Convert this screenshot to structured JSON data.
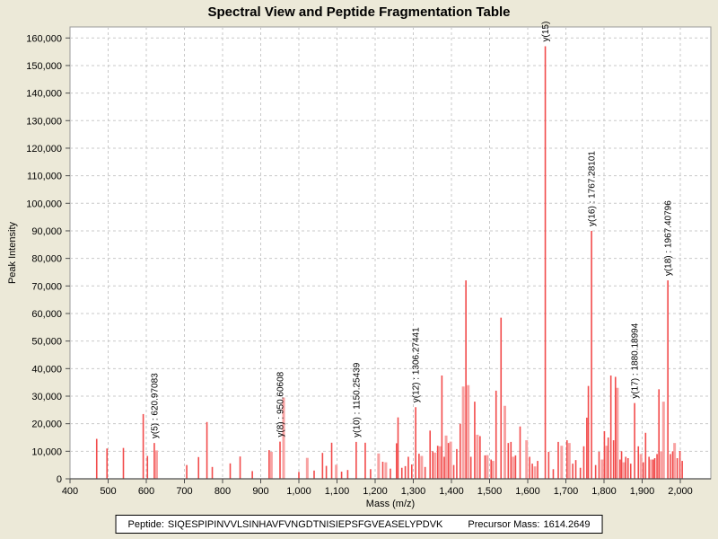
{
  "page": {
    "title": "Spectral View and Peptide Fragmentation Table",
    "footer": {
      "peptide_label": "Peptide:",
      "peptide_sequence": "SIQESPIPINVVLSINHAVFVNGDTNISIEPSFGVEASELYPDVK",
      "precursor_label": "Precursor Mass:",
      "precursor_mass": "1614.2649"
    },
    "colors": {
      "background": "#ece9d8",
      "plot_background": "#ffffff",
      "grid": "#c9c9c9",
      "plot_border": "#9a9a9a",
      "axis": "#4d4d4d",
      "peak_red": "#f24b4b",
      "peak_light": "#f8a2a2",
      "text": "#000000"
    }
  },
  "chart_data": {
    "type": "bar",
    "subtype": "mass-spectrum-stick-plot",
    "title": "Spectral View and Peptide Fragmentation Table",
    "xlabel": "Mass (m/z)",
    "ylabel": "Peak Intensity",
    "xlim": [
      400,
      2080
    ],
    "ylim": [
      0,
      164000
    ],
    "x_ticks": [
      400,
      500,
      600,
      700,
      800,
      900,
      1000,
      1100,
      1200,
      1300,
      1400,
      1500,
      1600,
      1700,
      1800,
      1900,
      2000
    ],
    "y_ticks": [
      0,
      10000,
      20000,
      30000,
      40000,
      50000,
      60000,
      70000,
      80000,
      90000,
      100000,
      110000,
      120000,
      130000,
      140000,
      150000,
      160000
    ],
    "grid": "dashed",
    "legend": "none",
    "peaks": [
      [
        470,
        14500,
        0
      ],
      [
        497,
        11000,
        0
      ],
      [
        540,
        11200,
        0
      ],
      [
        592,
        23500,
        0
      ],
      [
        603,
        8300,
        0
      ],
      [
        620.97083,
        13000,
        0
      ],
      [
        627,
        10300,
        1
      ],
      [
        706,
        5000,
        0
      ],
      [
        737,
        7900,
        0
      ],
      [
        759,
        20600,
        0
      ],
      [
        773,
        4300,
        0
      ],
      [
        820,
        5600,
        0
      ],
      [
        846,
        8100,
        0
      ],
      [
        878,
        2800,
        0
      ],
      [
        922,
        10400,
        0
      ],
      [
        928,
        9800,
        1
      ],
      [
        950.60608,
        13500,
        0
      ],
      [
        960,
        29500,
        1
      ],
      [
        1000,
        2500,
        0
      ],
      [
        1022,
        7600,
        1
      ],
      [
        1040,
        3000,
        0
      ],
      [
        1062,
        9400,
        0
      ],
      [
        1072,
        4700,
        0
      ],
      [
        1086,
        13100,
        0
      ],
      [
        1098,
        5100,
        1
      ],
      [
        1112,
        2600,
        0
      ],
      [
        1128,
        3200,
        0
      ],
      [
        1150.25439,
        13400,
        0
      ],
      [
        1174,
        13100,
        0
      ],
      [
        1188,
        3500,
        0
      ],
      [
        1209,
        9200,
        1
      ],
      [
        1220,
        6200,
        0
      ],
      [
        1228,
        6000,
        1
      ],
      [
        1240,
        3700,
        0
      ],
      [
        1256,
        12900,
        0
      ],
      [
        1260,
        22300,
        0
      ],
      [
        1270,
        4000,
        0
      ],
      [
        1279,
        4600,
        0
      ],
      [
        1287,
        8000,
        0
      ],
      [
        1296,
        5200,
        0
      ],
      [
        1306.27441,
        26000,
        0
      ],
      [
        1315,
        9100,
        0
      ],
      [
        1322,
        8300,
        1
      ],
      [
        1331,
        4300,
        0
      ],
      [
        1344,
        17500,
        0
      ],
      [
        1351,
        10000,
        0
      ],
      [
        1357,
        9500,
        1
      ],
      [
        1364,
        12000,
        0
      ],
      [
        1370,
        11800,
        1
      ],
      [
        1375,
        37500,
        0
      ],
      [
        1381,
        8000,
        0
      ],
      [
        1386,
        15700,
        1
      ],
      [
        1392,
        13000,
        0
      ],
      [
        1398,
        13500,
        1
      ],
      [
        1406,
        5000,
        0
      ],
      [
        1414,
        10800,
        0
      ],
      [
        1423,
        20000,
        0
      ],
      [
        1431,
        33500,
        1
      ],
      [
        1438,
        72000,
        0
      ],
      [
        1444,
        34000,
        1
      ],
      [
        1451,
        8000,
        0
      ],
      [
        1461,
        28000,
        0
      ],
      [
        1468,
        16000,
        1
      ],
      [
        1475,
        15500,
        0
      ],
      [
        1488,
        8500,
        0
      ],
      [
        1494,
        8600,
        1
      ],
      [
        1504,
        7000,
        0
      ],
      [
        1509,
        6500,
        1
      ],
      [
        1517,
        32000,
        0
      ],
      [
        1530,
        58500,
        0
      ],
      [
        1540,
        26500,
        1
      ],
      [
        1549,
        13000,
        0
      ],
      [
        1556,
        13400,
        0
      ],
      [
        1562,
        8000,
        1
      ],
      [
        1568,
        8500,
        0
      ],
      [
        1580,
        19000,
        0
      ],
      [
        1597,
        14000,
        1
      ],
      [
        1605,
        8000,
        0
      ],
      [
        1612,
        5500,
        0
      ],
      [
        1619,
        4500,
        1
      ],
      [
        1626,
        6500,
        0
      ],
      [
        1646,
        157000,
        0
      ],
      [
        1655,
        9800,
        0
      ],
      [
        1667,
        3500,
        0
      ],
      [
        1680,
        13400,
        0
      ],
      [
        1689,
        12000,
        1
      ],
      [
        1703,
        14000,
        0
      ],
      [
        1709,
        13000,
        1
      ],
      [
        1718,
        5500,
        0
      ],
      [
        1726,
        6800,
        0
      ],
      [
        1738,
        4000,
        0
      ],
      [
        1747,
        11800,
        0
      ],
      [
        1755,
        22200,
        0
      ],
      [
        1759,
        33700,
        0
      ],
      [
        1767.28101,
        90000,
        0
      ],
      [
        1778,
        5000,
        0
      ],
      [
        1787,
        9800,
        0
      ],
      [
        1795,
        7000,
        1
      ],
      [
        1801,
        17300,
        0
      ],
      [
        1807,
        12000,
        1
      ],
      [
        1811,
        15000,
        0
      ],
      [
        1818,
        37500,
        0
      ],
      [
        1825,
        14000,
        0
      ],
      [
        1830,
        37000,
        0
      ],
      [
        1835,
        33000,
        1
      ],
      [
        1842,
        7000,
        0
      ],
      [
        1846,
        10000,
        0
      ],
      [
        1852,
        6000,
        1
      ],
      [
        1857,
        8000,
        0
      ],
      [
        1863,
        7500,
        0
      ],
      [
        1870,
        5500,
        0
      ],
      [
        1880.18994,
        27500,
        0
      ],
      [
        1890,
        11800,
        0
      ],
      [
        1897,
        9000,
        1
      ],
      [
        1903,
        6000,
        0
      ],
      [
        1909,
        16700,
        0
      ],
      [
        1918,
        8000,
        0
      ],
      [
        1924,
        7000,
        1
      ],
      [
        1929,
        7000,
        0
      ],
      [
        1933,
        7500,
        0
      ],
      [
        1939,
        9000,
        0
      ],
      [
        1944,
        32500,
        0
      ],
      [
        1950,
        10000,
        1
      ],
      [
        1956,
        28000,
        1
      ],
      [
        1967.40796,
        72000,
        0
      ],
      [
        1974,
        9000,
        0
      ],
      [
        1980,
        10000,
        0
      ],
      [
        1985,
        13000,
        1
      ],
      [
        1992,
        7500,
        0
      ],
      [
        1999,
        10100,
        0
      ],
      [
        2005,
        6500,
        0
      ]
    ],
    "annotations": [
      {
        "label": "y(5) : 620.97083",
        "mz": 620.97083,
        "intensity": 13000
      },
      {
        "label": "y(8) : 950.60608",
        "mz": 950.60608,
        "intensity": 13500
      },
      {
        "label": "y(10) : 1150.25439",
        "mz": 1150.25439,
        "intensity": 13400
      },
      {
        "label": "y(12) : 1306.27441",
        "mz": 1306.27441,
        "intensity": 26000
      },
      {
        "label": "y(15)",
        "mz": 1646,
        "intensity": 157000
      },
      {
        "label": "y(16) : 1767.28101",
        "mz": 1767.28101,
        "intensity": 90000
      },
      {
        "label": "y(17) : 1880.18994",
        "mz": 1880.18994,
        "intensity": 27500
      },
      {
        "label": "y(18) : 1967.40796",
        "mz": 1967.40796,
        "intensity": 72000
      }
    ]
  }
}
